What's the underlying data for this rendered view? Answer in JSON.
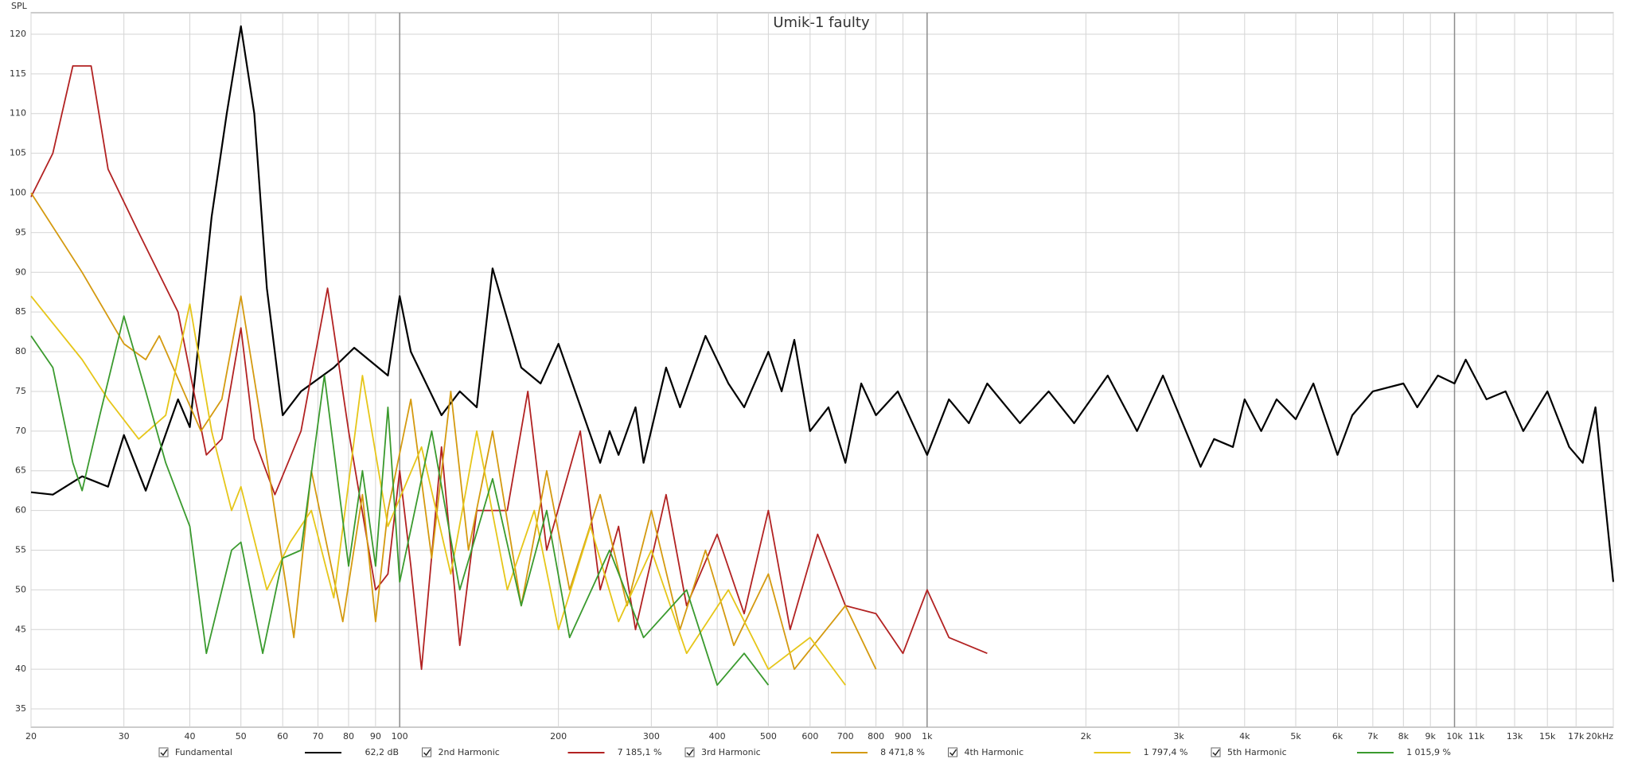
{
  "chart_data": {
    "type": "line",
    "title": "Umik-1 faulty",
    "y_label": "SPL",
    "x_log": true,
    "grid": true,
    "xlim": [
      20,
      20000
    ],
    "ylim": [
      32.7,
      122.7
    ],
    "xticks": [
      20,
      30,
      40,
      50,
      60,
      70,
      80,
      90,
      100,
      200,
      300,
      400,
      500,
      600,
      700,
      800,
      900,
      {
        "value": 1000,
        "label": "1k"
      },
      {
        "value": 2000,
        "label": "2k"
      },
      {
        "value": 3000,
        "label": "3k"
      },
      {
        "value": 4000,
        "label": "4k"
      },
      {
        "value": 5000,
        "label": "5k"
      },
      {
        "value": 6000,
        "label": "6k"
      },
      {
        "value": 7000,
        "label": "7k"
      },
      {
        "value": 8000,
        "label": "8k"
      },
      {
        "value": 9000,
        "label": "9k"
      },
      {
        "value": 10000,
        "label": "10k"
      },
      {
        "value": 11000,
        "label": "11k"
      },
      {
        "value": 13000,
        "label": "13k"
      },
      {
        "value": 15000,
        "label": "15k"
      },
      {
        "value": 17000,
        "label": "17k"
      },
      {
        "value": 20000,
        "label": "20kHz"
      }
    ],
    "yticks": [
      35,
      40,
      45,
      50,
      55,
      60,
      65,
      70,
      75,
      80,
      85,
      90,
      95,
      100,
      105,
      110,
      115,
      120
    ],
    "series": [
      {
        "name": "Fundamental",
        "color": "#000000",
        "readout": "62,2 dB",
        "x": [
          20,
          22,
          25,
          28,
          30,
          33,
          38,
          40,
          44,
          47,
          50,
          53,
          56,
          60,
          65,
          75,
          82,
          95,
          100,
          105,
          120,
          130,
          140,
          150,
          170,
          185,
          200,
          240,
          250,
          260,
          280,
          290,
          320,
          340,
          380,
          420,
          450,
          500,
          530,
          560,
          600,
          650,
          700,
          750,
          800,
          880,
          1000,
          1100,
          1200,
          1300,
          1500,
          1700,
          1900,
          2200,
          2500,
          2800,
          3300,
          3500,
          3800,
          4000,
          4300,
          4600,
          5000,
          5400,
          6000,
          6400,
          7000,
          8000,
          8500,
          9300,
          10000,
          10500,
          11500,
          12500,
          13500,
          15000,
          16500,
          17500,
          18500,
          20000
        ],
        "values": [
          62.3,
          62,
          64.3,
          63,
          69.5,
          62.5,
          74,
          70.5,
          97,
          110,
          121,
          110,
          88,
          72,
          75,
          78,
          80.5,
          77,
          87,
          80,
          72,
          75,
          73,
          90.5,
          78,
          76,
          81,
          66,
          70,
          67,
          73,
          66,
          78,
          73,
          82,
          76,
          73,
          80,
          75,
          81.5,
          70,
          73,
          66,
          76,
          72,
          75,
          67,
          74,
          71,
          76,
          71,
          75,
          71,
          77,
          70,
          77,
          65.5,
          69,
          68,
          74,
          70,
          74,
          71.5,
          76,
          67,
          72,
          75,
          76,
          73,
          77,
          76,
          79,
          74,
          75,
          70,
          75,
          68,
          66,
          73,
          51
        ]
      },
      {
        "name": "2nd Harmonic",
        "color": "#b22222",
        "readout": "7 185,1 %",
        "x": [
          20,
          22,
          24,
          26,
          28,
          32,
          38,
          43,
          46,
          50,
          53,
          58,
          65,
          73,
          80,
          90,
          95,
          100,
          105,
          110,
          120,
          130,
          140,
          160,
          175,
          190,
          220,
          240,
          260,
          280,
          320,
          350,
          400,
          450,
          500,
          550,
          620,
          700,
          800,
          900,
          1000,
          1100,
          1300
        ],
        "values": [
          99.5,
          105,
          116,
          116,
          103,
          95,
          85,
          67,
          69,
          83,
          69,
          62,
          70,
          88,
          70,
          50,
          52,
          65,
          53,
          40,
          68,
          43,
          60,
          60,
          75,
          55,
          70,
          50,
          58,
          45,
          62,
          48,
          57,
          47,
          60,
          45,
          57,
          48,
          47,
          42,
          50,
          44,
          42
        ]
      },
      {
        "name": "3rd Harmonic",
        "color": "#d49a10",
        "readout": "8 471,8 %",
        "x": [
          20,
          25,
          30,
          33,
          35,
          42,
          46,
          50,
          55,
          63,
          68,
          78,
          85,
          90,
          95,
          105,
          115,
          125,
          135,
          150,
          170,
          190,
          210,
          240,
          270,
          300,
          340,
          380,
          430,
          500,
          560,
          700,
          800
        ],
        "values": [
          100,
          90,
          81,
          79,
          82,
          70,
          74,
          87,
          70,
          44,
          65,
          46,
          62,
          46,
          60,
          74,
          54,
          75,
          55,
          70,
          48,
          65,
          50,
          62,
          48,
          60,
          45,
          55,
          43,
          52,
          40,
          48,
          40
        ]
      },
      {
        "name": "4th Harmonic",
        "color": "#e6c619",
        "readout": "1 797,4 %",
        "x": [
          20,
          25,
          28,
          32,
          36,
          40,
          44,
          48,
          50,
          56,
          62,
          68,
          75,
          85,
          95,
          110,
          125,
          140,
          160,
          180,
          200,
          230,
          260,
          300,
          350,
          420,
          500,
          600,
          700
        ],
        "values": [
          87,
          79,
          74,
          69,
          72,
          86,
          70,
          60,
          63,
          50,
          56,
          60,
          49,
          77,
          58,
          68,
          52,
          70,
          50,
          60,
          45,
          58,
          46,
          55,
          42,
          50,
          40,
          44,
          38
        ]
      },
      {
        "name": "5th Harmonic",
        "color": "#3a9a2e",
        "readout": "1 015,9 %",
        "x": [
          20,
          22,
          24,
          25,
          27,
          30,
          33,
          36,
          40,
          43,
          48,
          50,
          55,
          60,
          65,
          72,
          80,
          85,
          90,
          95,
          100,
          115,
          130,
          150,
          170,
          190,
          210,
          250,
          290,
          350,
          400,
          450,
          500
        ],
        "values": [
          82,
          78,
          66,
          62.5,
          72,
          84.5,
          75,
          66,
          58,
          42,
          55,
          56,
          42,
          54,
          55,
          77,
          53,
          65,
          53,
          73,
          51,
          70,
          50,
          64,
          48,
          60,
          44,
          55,
          44,
          50,
          38,
          42,
          38
        ]
      }
    ]
  }
}
